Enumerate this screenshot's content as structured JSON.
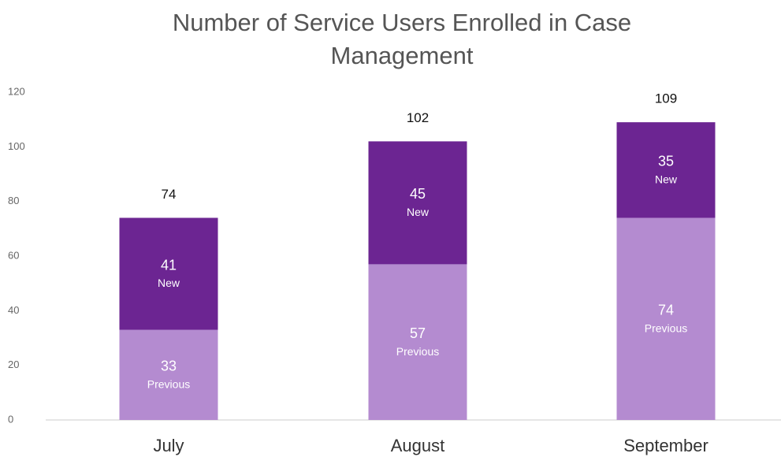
{
  "chart_data": {
    "type": "stacked_bar",
    "title": "Number of Service Users Enrolled in Case Management",
    "categories": [
      "July",
      "August",
      "September"
    ],
    "series": [
      {
        "name": "Previous",
        "color": "#b48bd0",
        "values": [
          33,
          57,
          74
        ]
      },
      {
        "name": "New",
        "color": "#6c2592",
        "values": [
          41,
          45,
          35
        ]
      }
    ],
    "totals": [
      74,
      102,
      109
    ],
    "ylim": [
      0,
      120
    ],
    "yticks": [
      0,
      20,
      40,
      60,
      80,
      100,
      120
    ],
    "grid": false
  }
}
